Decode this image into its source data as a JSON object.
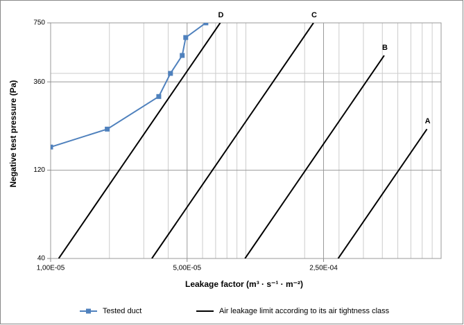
{
  "chart_data": {
    "type": "line",
    "xlabel": "Leakage factor (m³ · s⁻¹ · m⁻²)",
    "ylabel": "Negative test pressure (Pa)",
    "xscale": "log",
    "yscale": "log",
    "grid": true,
    "xlim": [
      1e-05,
      0.001
    ],
    "ylim": [
      40,
      750
    ],
    "xticks": [
      {
        "value": 1e-05,
        "label": "1,00E-05"
      },
      {
        "value": 5e-05,
        "label": "5,00E-05"
      },
      {
        "value": 0.00025,
        "label": "2,50E-04"
      }
    ],
    "yticks": [
      40,
      120,
      360,
      750
    ],
    "xminor": [
      2e-05,
      3e-05,
      4e-05,
      6e-05,
      7e-05,
      8e-05,
      9e-05,
      0.0001,
      0.0002,
      0.0003,
      0.0004,
      0.0005,
      0.0006,
      0.0007,
      0.0008,
      0.0009
    ],
    "yminor": [
      400
    ],
    "series": [
      {
        "name": "Tested duct",
        "color": "#4f81bd",
        "x": [
          1e-05,
          1.95e-05,
          3.58e-05,
          4.11e-05,
          4.72e-05,
          4.92e-05,
          6.24e-05
        ],
        "values": [
          160,
          200,
          300,
          400,
          500,
          625,
          750
        ]
      }
    ],
    "limit_lines": {
      "name": "Air leakage limit according to its air tightness class",
      "color": "#000000",
      "lines": [
        {
          "label": "D",
          "x": [
            1.1e-05,
            7.39e-05
          ],
          "values": [
            40,
            750
          ]
        },
        {
          "label": "C",
          "x": [
            3.3e-05,
            0.000222
          ],
          "values": [
            40,
            750
          ]
        },
        {
          "label": "B",
          "x": [
            9.9e-05,
            0.000511
          ],
          "values": [
            40,
            500
          ]
        },
        {
          "label": "A",
          "x": [
            0.000297,
            0.000846
          ],
          "values": [
            40,
            200
          ]
        }
      ]
    }
  }
}
